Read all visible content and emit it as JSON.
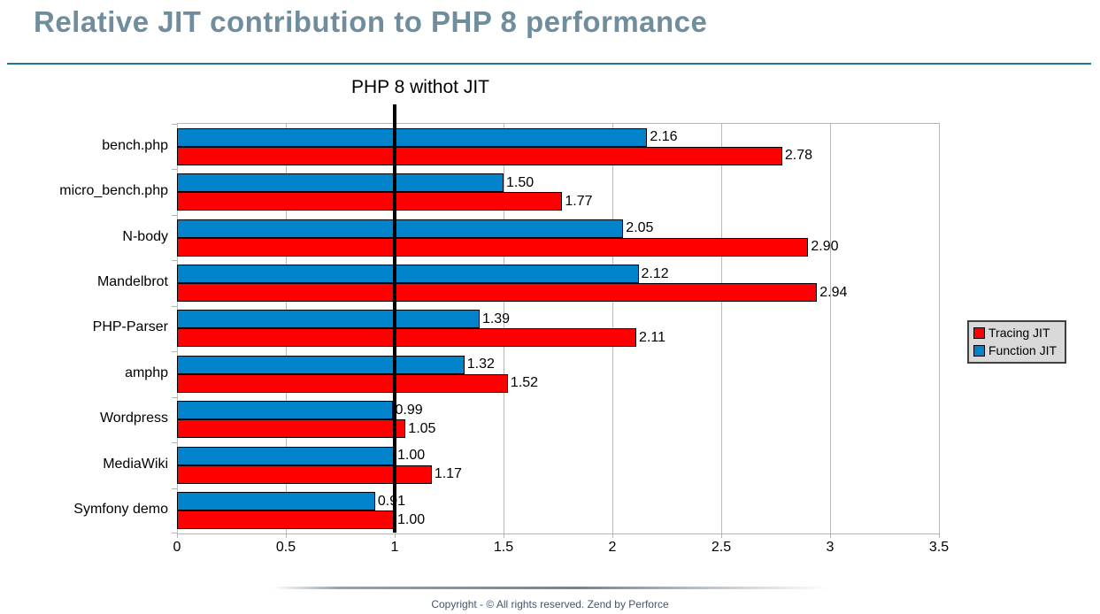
{
  "title": "Relative JIT contribution to PHP 8 performance",
  "footer": {
    "copyright": "Copyright - © All rights reserved. Zend by Perforce"
  },
  "chart_data": {
    "type": "bar",
    "orientation": "horizontal",
    "title": "Relative JIT contribution to PHP 8 performance",
    "categories": [
      "bench.php",
      "micro_bench.php",
      "N-body",
      "Mandelbrot",
      "PHP-Parser",
      "amphp",
      "Wordpress",
      "MediaWiki",
      "Symfony demo"
    ],
    "series": [
      {
        "name": "Tracing JIT",
        "color": "#ff0000",
        "values": [
          2.78,
          1.77,
          2.9,
          2.94,
          2.11,
          1.52,
          1.05,
          1.17,
          1.0
        ]
      },
      {
        "name": "Function JIT",
        "color": "#0083cb",
        "values": [
          2.16,
          1.5,
          2.05,
          2.12,
          1.39,
          1.32,
          0.99,
          1.0,
          0.91
        ]
      }
    ],
    "bar_draw_order_top_to_bottom": [
      "Function JIT",
      "Tracing JIT"
    ],
    "xlim": [
      0,
      3.5
    ],
    "x_ticks": [
      "0",
      "0.5",
      "1",
      "1.5",
      "2",
      "2.5",
      "3",
      "3.5"
    ],
    "value_label_decimals": 2,
    "reference_line": {
      "x": 1,
      "label": "PHP 8 withot JIT",
      "color": "#000000"
    },
    "grid": "vertical",
    "legend_position": "right"
  },
  "colors": {
    "title_text": "#6f8d9c",
    "header_rule": "#1878a0",
    "grid_line": "#b9b9b9",
    "bar_border": "#000000",
    "legend_background": "#d9d9d9",
    "footer_text": "#44546a"
  }
}
